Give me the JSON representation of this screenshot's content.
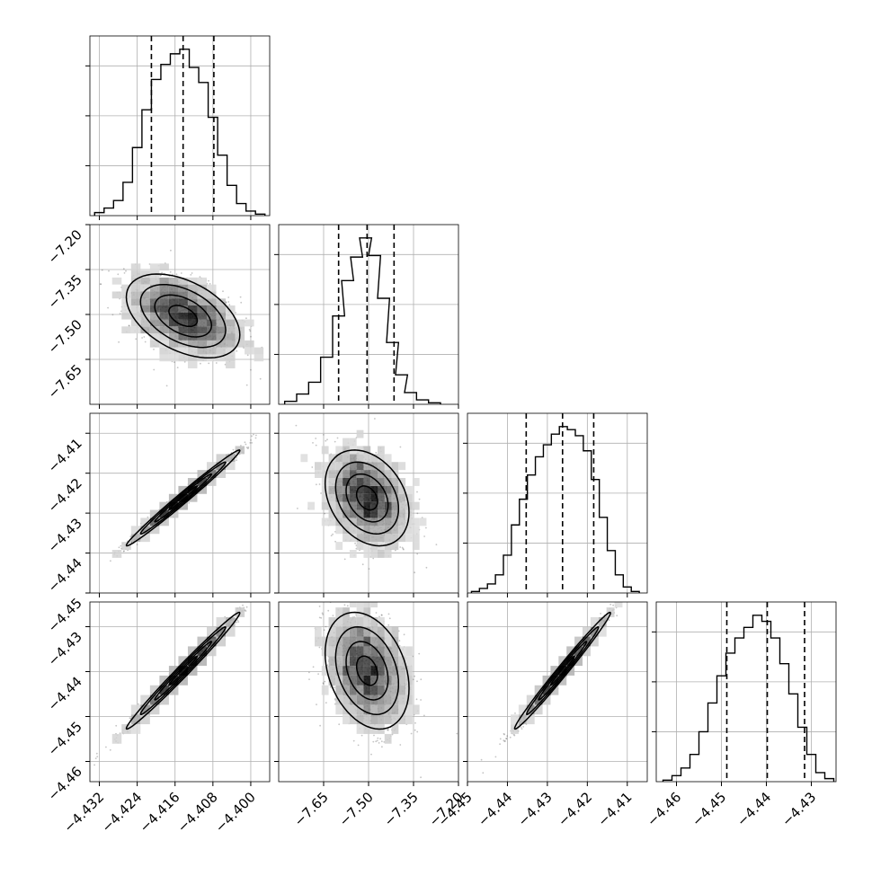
{
  "figure": {
    "type": "corner-plot",
    "grid": true,
    "quantile_lines": "dashed"
  },
  "chart_data": [
    {
      "type": "histogram",
      "cell": "1-1",
      "x": [
        -4.432,
        -4.43,
        -4.428,
        -4.426,
        -4.424,
        -4.422,
        -4.42,
        -4.418,
        -4.416,
        -4.414,
        -4.412,
        -4.41,
        -4.408,
        -4.406,
        -4.404,
        -4.402,
        -4.4,
        -4.398
      ],
      "values": [
        2,
        5,
        10,
        22,
        45,
        70,
        90,
        100,
        107,
        110,
        98,
        88,
        65,
        40,
        20,
        8,
        3,
        1
      ],
      "quantiles": [
        -4.421,
        -4.4143,
        -4.4078
      ],
      "xlim": [
        -4.434,
        -4.396
      ]
    },
    {
      "type": "histogram",
      "cell": "2-2",
      "x": [
        -7.76,
        -7.72,
        -7.68,
        -7.64,
        -7.6,
        -7.57,
        -7.54,
        -7.51,
        -7.48,
        -7.45,
        -7.42,
        -7.39,
        -7.36,
        -7.32,
        -7.28
      ],
      "values": [
        2,
        7,
        15,
        32,
        60,
        84,
        100,
        113,
        101,
        72,
        42,
        20,
        8,
        3,
        1
      ],
      "quantiles": [
        -7.6,
        -7.505,
        -7.415
      ],
      "xlim": [
        -7.8,
        -7.2
      ]
    },
    {
      "type": "histogram",
      "cell": "3-3",
      "x": [
        -4.448,
        -4.446,
        -4.444,
        -4.442,
        -4.44,
        -4.438,
        -4.436,
        -4.434,
        -4.432,
        -4.43,
        -4.428,
        -4.426,
        -4.424,
        -4.422,
        -4.42,
        -4.418,
        -4.416,
        -4.414,
        -4.412,
        -4.41,
        -4.408
      ],
      "values": [
        1,
        3,
        6,
        12,
        25,
        45,
        62,
        78,
        90,
        98,
        105,
        110,
        108,
        104,
        94,
        75,
        50,
        28,
        12,
        4,
        1
      ],
      "quantiles": [
        -4.4353,
        -4.4262,
        -4.4184
      ],
      "xlim": [
        -4.45,
        -4.405
      ]
    },
    {
      "type": "histogram",
      "cell": "4-4",
      "x": [
        -4.462,
        -4.46,
        -4.458,
        -4.456,
        -4.454,
        -4.452,
        -4.45,
        -4.448,
        -4.446,
        -4.444,
        -4.442,
        -4.44,
        -4.438,
        -4.436,
        -4.434,
        -4.432,
        -4.43,
        -4.428,
        -4.426
      ],
      "values": [
        1,
        4,
        9,
        18,
        33,
        52,
        70,
        85,
        95,
        102,
        110,
        106,
        95,
        78,
        58,
        36,
        18,
        6,
        2
      ],
      "quantiles": [
        -4.4488,
        -4.4398,
        -4.4315
      ],
      "xlim": [
        -4.4645,
        -4.4245
      ]
    },
    {
      "type": "scatter-density",
      "cell": "2-1",
      "mean": [
        -4.4143,
        -7.505
      ],
      "std": [
        0.006,
        0.07
      ],
      "corr": -0.45
    },
    {
      "type": "scatter-density",
      "cell": "3-1",
      "mean": [
        -4.4143,
        -4.4262
      ],
      "std": [
        0.006,
        0.006
      ],
      "corr": 0.99
    },
    {
      "type": "scatter-density",
      "cell": "3-2",
      "mean": [
        -7.505,
        -4.4262
      ],
      "std": [
        0.07,
        0.006
      ],
      "corr": -0.3
    },
    {
      "type": "scatter-density",
      "cell": "4-1",
      "mean": [
        -4.4143,
        -4.4398
      ],
      "std": [
        0.006,
        0.0065
      ],
      "corr": 0.99
    },
    {
      "type": "scatter-density",
      "cell": "4-2",
      "mean": [
        -7.505,
        -4.4398
      ],
      "std": [
        0.07,
        0.0065
      ],
      "corr": -0.3
    },
    {
      "type": "scatter-density",
      "cell": "4-3",
      "mean": [
        -4.4262,
        -4.4398
      ],
      "std": [
        0.006,
        0.0065
      ],
      "corr": 0.99
    }
  ],
  "axes": {
    "col1": {
      "range": [
        -4.434,
        -4.396
      ],
      "ticks": [
        -4.432,
        -4.424,
        -4.416,
        -4.408,
        -4.4
      ],
      "labels": [
        "−4.432",
        "−4.424",
        "−4.416",
        "−4.408",
        "−4.400"
      ]
    },
    "col2": {
      "range": [
        -7.8,
        -7.2
      ],
      "ticks": [
        -7.65,
        -7.5,
        -7.35,
        -7.2
      ],
      "labels": [
        "−7.65",
        "−7.50",
        "−7.35",
        "−7.20"
      ]
    },
    "col3": {
      "range": [
        -4.45,
        -4.405
      ],
      "ticks": [
        -4.45,
        -4.44,
        -4.43,
        -4.42,
        -4.41
      ],
      "labels": [
        "−4.45",
        "−4.44",
        "−4.43",
        "−4.42",
        "−4.41"
      ]
    },
    "col4": {
      "range": [
        -4.4645,
        -4.4245
      ],
      "ticks": [
        -4.46,
        -4.45,
        -4.44,
        -4.43
      ],
      "labels": [
        "−4.46",
        "−4.45",
        "−4.44",
        "−4.43"
      ]
    },
    "row2": {
      "range": [
        -7.8,
        -7.2
      ],
      "ticks": [
        -7.65,
        -7.5,
        -7.35,
        -7.2
      ],
      "labels": [
        "−7.65",
        "−7.50",
        "−7.35",
        "−7.20"
      ]
    },
    "row3": {
      "range": [
        -4.45,
        -4.405
      ],
      "ticks": [
        -4.45,
        -4.44,
        -4.43,
        -4.42,
        -4.41
      ],
      "labels": [
        "−4.45",
        "−4.44",
        "−4.43",
        "−4.42",
        "−4.41"
      ]
    },
    "row4": {
      "range": [
        -4.4645,
        -4.4245
      ],
      "ticks": [
        -4.46,
        -4.45,
        -4.44,
        -4.43
      ],
      "labels": [
        "−4.46",
        "−4.45",
        "−4.44",
        "−4.43"
      ]
    }
  },
  "colors": {
    "line": "#000000",
    "grid": "#b0b0b0",
    "points": "#555555",
    "background": "#ffffff"
  }
}
